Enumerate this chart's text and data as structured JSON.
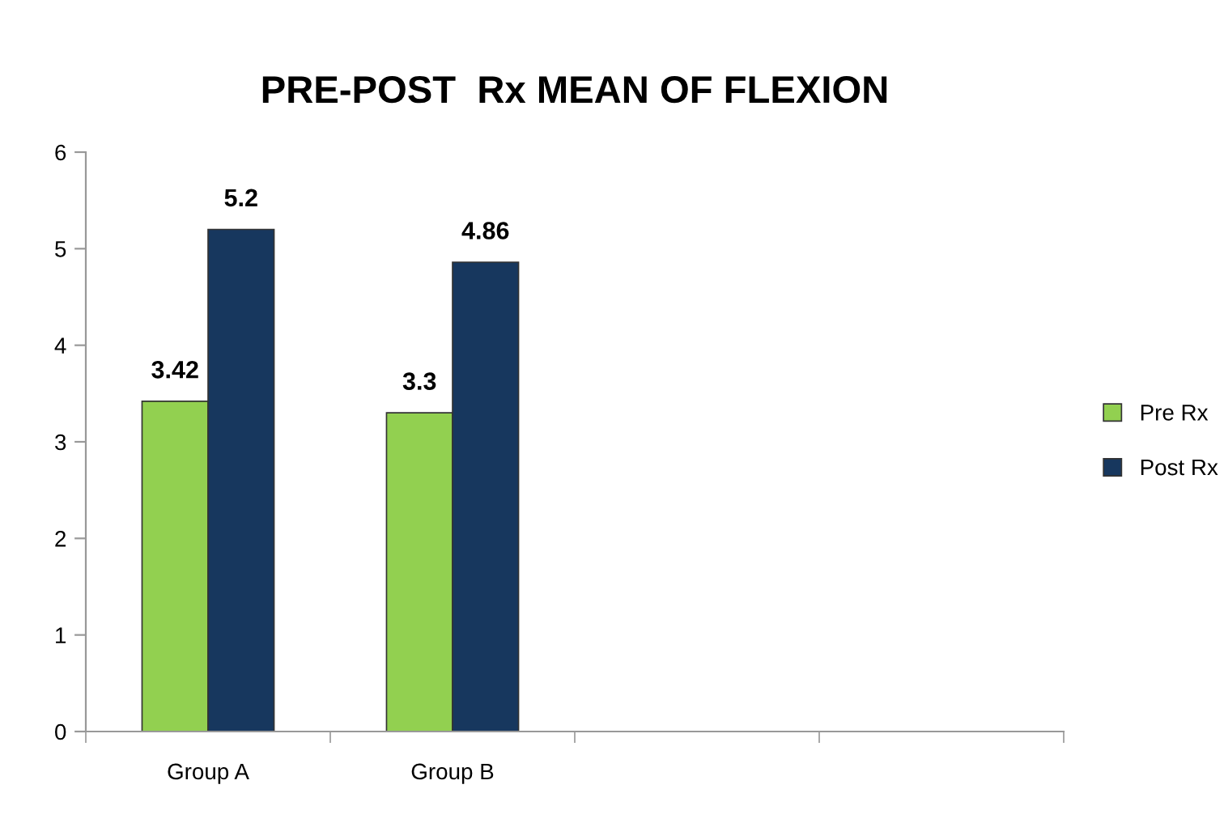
{
  "chart_data": {
    "type": "bar",
    "title": "PRE-POST  Rx MEAN OF FLEXION",
    "categories": [
      "Group A",
      "Group B",
      null,
      null
    ],
    "series": [
      {
        "name": "Pre Rx",
        "color": "#92d050",
        "values": [
          3.42,
          3.3,
          null,
          null
        ]
      },
      {
        "name": "Post Rx",
        "color": "#17375e",
        "values": [
          5.2,
          4.86,
          null,
          null
        ]
      }
    ],
    "ylim": [
      0,
      6
    ],
    "yticks": [
      0,
      1,
      2,
      3,
      4,
      5,
      6
    ],
    "grid": false,
    "legend": "right",
    "data_labels": true
  }
}
